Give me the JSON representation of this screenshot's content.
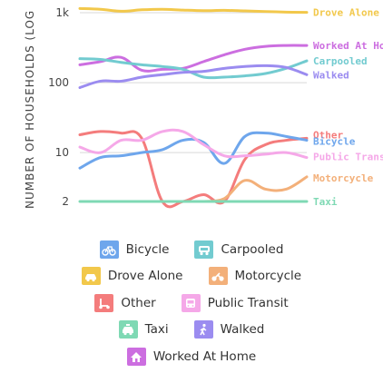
{
  "chart_data": {
    "type": "line",
    "ylabel": "NUMBER OF HOUSEHOLDS (LOG",
    "yscale": "log",
    "ylim": [
      2,
      1000
    ],
    "yticks": [
      {
        "value": 2,
        "label": "2"
      },
      {
        "value": 10,
        "label": "10"
      },
      {
        "value": 100,
        "label": "100"
      },
      {
        "value": 1000,
        "label": "1k"
      }
    ],
    "grid": true,
    "x": [
      0,
      1,
      2,
      3,
      4,
      5,
      6,
      7,
      8,
      9,
      10,
      11
    ],
    "series": [
      {
        "name": "Drove Alone",
        "color": "#f2c84b",
        "icon": "car-icon",
        "values": [
          1150,
          1120,
          1050,
          1100,
          1120,
          1090,
          1070,
          1080,
          1060,
          1040,
          1020,
          1010
        ]
      },
      {
        "name": "Worked At Home",
        "color": "#cc6ee0",
        "icon": "home-icon",
        "values": [
          180,
          200,
          230,
          150,
          155,
          160,
          200,
          250,
          300,
          330,
          340,
          340
        ]
      },
      {
        "name": "Carpooled",
        "color": "#72cbd0",
        "icon": "carpool-icon",
        "values": [
          220,
          215,
          195,
          180,
          170,
          155,
          120,
          120,
          125,
          135,
          160,
          205
        ]
      },
      {
        "name": "Walked",
        "color": "#9b8cf0",
        "icon": "walk-icon",
        "values": [
          85,
          105,
          105,
          120,
          130,
          140,
          145,
          160,
          170,
          175,
          165,
          130
        ]
      },
      {
        "name": "Other",
        "color": "#f47c7c",
        "icon": "scooter-icon",
        "values": [
          18,
          20,
          19,
          16,
          2,
          2,
          2.5,
          2,
          8,
          13,
          15,
          16
        ]
      },
      {
        "name": "Bicycle",
        "color": "#6ea6ec",
        "icon": "bicycle-icon",
        "values": [
          6,
          8.5,
          9,
          10,
          11,
          15,
          14,
          7,
          17,
          19,
          17,
          15
        ]
      },
      {
        "name": "Public Transit",
        "color": "#f5a8e8",
        "icon": "bus-icon",
        "values": [
          12,
          10,
          15,
          15,
          20,
          20,
          13,
          9,
          9,
          9.5,
          10,
          8.5
        ]
      },
      {
        "name": "Motorcycle",
        "color": "#f3b07a",
        "icon": "motorcycle-icon",
        "values": [
          null,
          null,
          null,
          null,
          null,
          null,
          2,
          2.2,
          4,
          3,
          3,
          4.5
        ]
      },
      {
        "name": "Taxi",
        "color": "#7fd9b4",
        "icon": "taxi-icon",
        "values": [
          2,
          2,
          2,
          2,
          2,
          2,
          2,
          2,
          2,
          2,
          2,
          2
        ]
      }
    ]
  },
  "legend": {
    "rows": [
      [
        {
          "label": "Bicycle",
          "color": "#6ea6ec",
          "icon": "bicycle-icon"
        },
        {
          "label": "Carpooled",
          "color": "#72cbd0",
          "icon": "carpool-icon"
        }
      ],
      [
        {
          "label": "Drove Alone",
          "color": "#f2c84b",
          "icon": "car-icon"
        },
        {
          "label": "Motorcycle",
          "color": "#f3b07a",
          "icon": "motorcycle-icon"
        }
      ],
      [
        {
          "label": "Other",
          "color": "#f47c7c",
          "icon": "scooter-icon"
        },
        {
          "label": "Public Transit",
          "color": "#f5a8e8",
          "icon": "bus-icon"
        }
      ],
      [
        {
          "label": "Taxi",
          "color": "#7fd9b4",
          "icon": "taxi-icon"
        },
        {
          "label": "Walked",
          "color": "#9b8cf0",
          "icon": "walk-icon"
        }
      ],
      [
        {
          "label": "Worked At Home",
          "color": "#cc6ee0",
          "icon": "home-icon"
        }
      ]
    ]
  }
}
